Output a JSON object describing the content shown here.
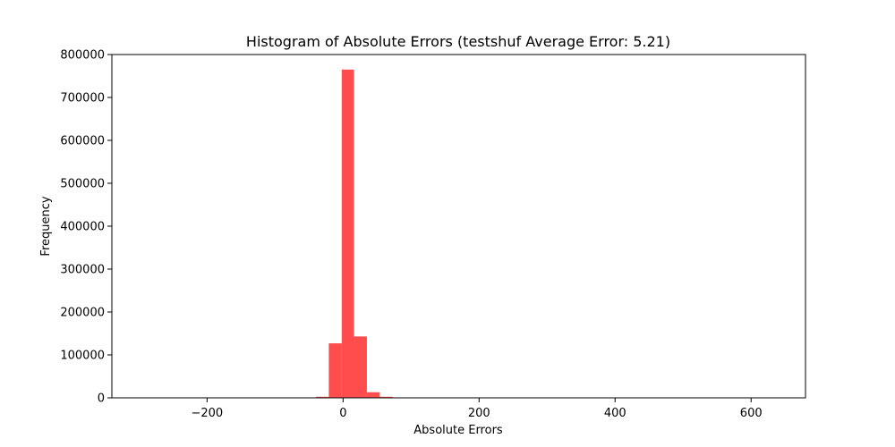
{
  "chart_data": {
    "type": "bar",
    "title": "Histogram of Absolute Errors (testshuf Average Error: 5.21)",
    "xlabel": "Absolute Errors",
    "ylabel": "Frequency",
    "xlim": [
      -340,
      680
    ],
    "ylim": [
      0,
      800000
    ],
    "x_ticks": [
      -200,
      0,
      200,
      400,
      600
    ],
    "x_tick_labels": [
      "−200",
      "0",
      "200",
      "400",
      "600"
    ],
    "y_ticks": [
      0,
      100000,
      200000,
      300000,
      400000,
      500000,
      600000,
      700000,
      800000
    ],
    "y_tick_labels": [
      "0",
      "100000",
      "200000",
      "300000",
      "400000",
      "500000",
      "600000",
      "700000",
      "800000"
    ],
    "grid": false,
    "bar_color": "#ff4d4d",
    "bins": [
      {
        "x0": -60,
        "x1": -40,
        "value": 300
      },
      {
        "x0": -40,
        "x1": -21,
        "value": 2500
      },
      {
        "x0": -21,
        "x1": -2,
        "value": 127000
      },
      {
        "x0": -2,
        "x1": 16,
        "value": 765000
      },
      {
        "x0": 16,
        "x1": 35,
        "value": 143000
      },
      {
        "x0": 35,
        "x1": 54,
        "value": 13000
      },
      {
        "x0": 54,
        "x1": 73,
        "value": 2500
      },
      {
        "x0": 73,
        "x1": 92,
        "value": 500
      }
    ]
  }
}
